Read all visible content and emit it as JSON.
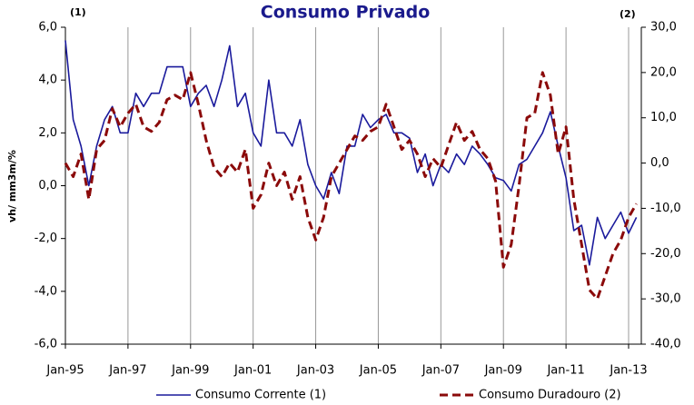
{
  "chart_data": {
    "type": "line",
    "title": "Consumo Privado",
    "annotations": [
      "(1)",
      "(2)"
    ],
    "y_label": "vh/ mm3m/%",
    "categories": [
      "Jan-95",
      null,
      null,
      null,
      null,
      null,
      null,
      null,
      "Jan-97",
      null,
      null,
      null,
      null,
      null,
      null,
      null,
      "Jan-99",
      null,
      null,
      null,
      null,
      null,
      null,
      null,
      "Jan-01",
      null,
      null,
      null,
      null,
      null,
      null,
      null,
      "Jan-03",
      null,
      null,
      null,
      null,
      null,
      null,
      null,
      "Jan-05",
      null,
      null,
      null,
      null,
      null,
      null,
      null,
      "Jan-07",
      null,
      null,
      null,
      null,
      null,
      null,
      null,
      "Jan-09",
      null,
      null,
      null,
      null,
      null,
      null,
      null,
      "Jan-11",
      null,
      null,
      null,
      null,
      null,
      null,
      null,
      "Jan-13",
      null
    ],
    "series": [
      {
        "name": "Consumo Corrente (1)",
        "color": "#1a1a9c",
        "axis": "y",
        "values": [
          5.5,
          2.5,
          1.5,
          0.0,
          1.5,
          2.5,
          3.0,
          2.0,
          2.0,
          3.5,
          3.0,
          3.5,
          3.5,
          4.5,
          4.5,
          4.5,
          3.0,
          3.5,
          3.8,
          3.0,
          4.0,
          5.3,
          3.0,
          3.5,
          2.0,
          1.5,
          4.0,
          2.0,
          2.0,
          1.5,
          2.5,
          0.8,
          0.0,
          -0.5,
          0.5,
          -0.3,
          1.5,
          1.5,
          2.7,
          2.2,
          2.5,
          2.7,
          2.0,
          2.0,
          1.8,
          0.5,
          1.2,
          0.0,
          0.8,
          0.5,
          1.2,
          0.8,
          1.5,
          1.2,
          0.8,
          0.3,
          0.2,
          -0.2,
          0.8,
          1.0,
          1.5,
          2.0,
          2.8,
          1.5,
          0.3,
          -1.7,
          -1.5,
          -3.0,
          -1.2,
          -2.0,
          -1.5,
          -1.0,
          -1.8,
          -1.2
        ]
      },
      {
        "name": "Consumo Duradouro (2)",
        "color": "#8b0a0a",
        "axis": "y2",
        "values": [
          0,
          -3,
          2,
          -8,
          3,
          5,
          12,
          8,
          11,
          13,
          8,
          7,
          9,
          14,
          15,
          14,
          20,
          13,
          5,
          -1,
          -3,
          0,
          -2,
          3,
          -10,
          -7,
          0,
          -5,
          -2,
          -8,
          -3,
          -12,
          -17,
          -12,
          -3,
          0,
          3,
          6,
          5,
          7,
          8,
          13,
          8,
          3,
          5,
          2,
          -3,
          1,
          -1,
          4,
          9,
          5,
          7,
          3,
          1,
          -4,
          -23,
          -18,
          -5,
          10,
          11,
          20,
          15,
          2,
          8,
          -8,
          -18,
          -28,
          -30,
          -25,
          -20,
          -17,
          -12,
          -9
        ]
      }
    ],
    "ylim": [
      -6,
      6
    ],
    "yticks": [
      {
        "value": -6,
        "label": "-6,0"
      },
      {
        "value": -4,
        "label": "-4,0"
      },
      {
        "value": -2,
        "label": "-2,0"
      },
      {
        "value": 0,
        "label": "0,0"
      },
      {
        "value": 2,
        "label": "2,0"
      },
      {
        "value": 4,
        "label": "4,0"
      },
      {
        "value": 6,
        "label": "6,0"
      }
    ],
    "y2lim": [
      -40,
      30
    ],
    "y2ticks": [
      {
        "value": -40,
        "label": "-40,0"
      },
      {
        "value": -30,
        "label": "-30,0"
      },
      {
        "value": -20,
        "label": "-20,0"
      },
      {
        "value": -10,
        "label": "-10,0"
      },
      {
        "value": 0,
        "label": "0,0"
      },
      {
        "value": 10,
        "label": "10,0"
      },
      {
        "value": 20,
        "label": "20,0"
      },
      {
        "value": 30,
        "label": "30,0"
      }
    ],
    "legend": "bottom"
  }
}
